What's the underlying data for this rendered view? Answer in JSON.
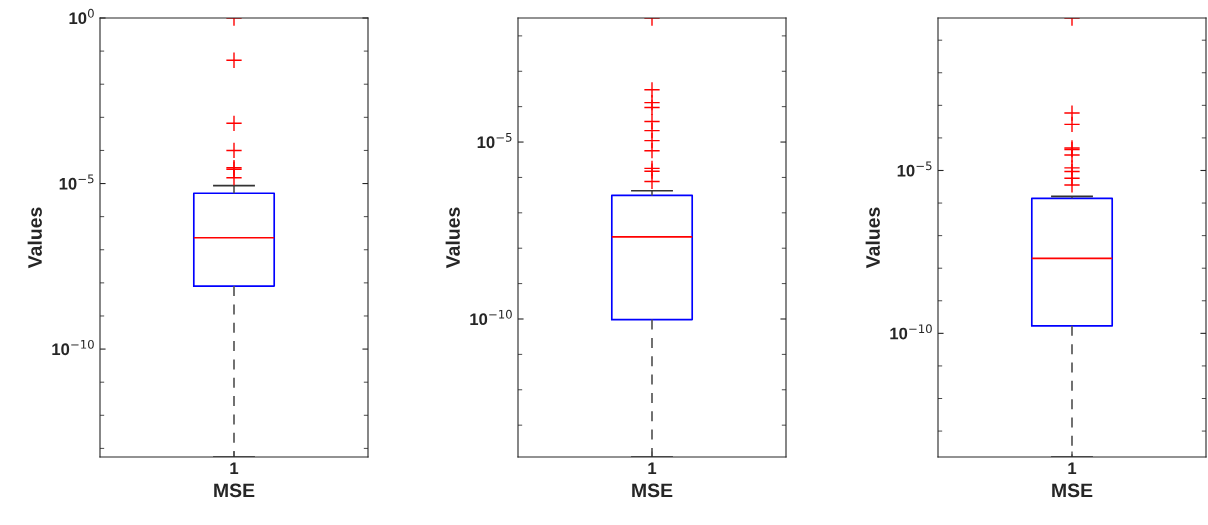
{
  "chart_data": [
    {
      "type": "box",
      "categories": [
        "1"
      ],
      "xlabel": "MSE",
      "ylabel": "Values",
      "log": "y",
      "ylim": [
        5.5e-14,
        1
      ],
      "yticks": [
        {
          "value": 1e-10,
          "label": "10$^{−10}$"
        },
        {
          "value": 1e-05,
          "label": "10$^{−5}$"
        },
        {
          "value": 1,
          "label": "10$^{0}$"
        }
      ],
      "boxes": [
        {
          "low": 5.5e-14,
          "q1": 8e-09,
          "median": 2.3e-07,
          "q3": 5.1e-06,
          "high": 8.7e-06,
          "outliers": [
            1,
            0.053,
            0.00066,
            0.0001,
            3e-05,
            2.7e-05,
            1.5e-05
          ]
        }
      ]
    },
    {
      "type": "box",
      "categories": [
        "1"
      ],
      "xlabel": "MSE",
      "ylabel": "Values",
      "log": "y",
      "ylim": [
        1.26e-14,
        0.032
      ],
      "yticks": [
        {
          "value": 1e-10,
          "label": "10$^{−10}$"
        },
        {
          "value": 1e-05,
          "label": "10$^{−5}$"
        }
      ],
      "boxes": [
        {
          "low": 1.26e-14,
          "q1": 9.6e-11,
          "median": 2.1e-08,
          "q3": 3.1e-07,
          "high": 4.2e-07,
          "outliers": [
            0.032,
            0.0003,
            0.00013,
            9.5e-05,
            3.8e-05,
            2.1e-05,
            1.1e-05,
            5.7e-06,
            1.8e-06,
            1.5e-06,
            7.7e-07
          ]
        }
      ]
    },
    {
      "type": "box",
      "categories": [
        "1"
      ],
      "xlabel": "MSE",
      "ylabel": "Values",
      "log": "y",
      "ylim": [
        1.6e-14,
        0.48
      ],
      "yticks": [
        {
          "value": 1e-10,
          "label": "10$^{−10}$"
        },
        {
          "value": 1e-05,
          "label": "10$^{−5}$"
        }
      ],
      "boxes": [
        {
          "low": 1.6e-14,
          "q1": 1.7e-10,
          "median": 2e-08,
          "q3": 1.4e-06,
          "high": 1.6e-06,
          "outliers": [
            0.48,
            0.00058,
            0.00026,
            4.9e-05,
            4.4e-05,
            3e-05,
            1.2e-05,
            9.3e-06,
            5.8e-06,
            3.6e-06
          ]
        }
      ]
    }
  ]
}
